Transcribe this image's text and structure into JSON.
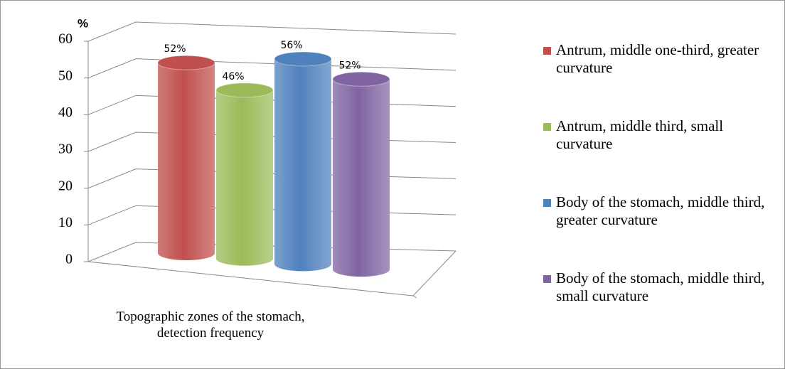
{
  "chart_data": {
    "type": "bar3d",
    "y_label": "%",
    "categories": [
      "Topographic zones of the stomach, detection frequency"
    ],
    "series": [
      {
        "name": "Antrum, middle one-third, greater curvature",
        "color": "#c0504d",
        "values": [
          52
        ],
        "value_labels": [
          "52%"
        ]
      },
      {
        "name": "Antrum, middle third, small curvature",
        "color": "#9bbb59",
        "values": [
          46
        ],
        "value_labels": [
          "46%"
        ]
      },
      {
        "name": "Body of the stomach, middle third, greater curvature",
        "color": "#4f81bd",
        "values": [
          56
        ],
        "value_labels": [
          "56%"
        ]
      },
      {
        "name": "Body of the stomach, middle third, small curvature",
        "color": "#8064a2",
        "values": [
          52
        ],
        "value_labels": [
          "52%"
        ]
      }
    ],
    "ylim": [
      0,
      60
    ],
    "yticks": [
      0,
      10,
      20,
      30,
      40,
      50,
      60
    ],
    "grid": true,
    "legend": "right"
  }
}
